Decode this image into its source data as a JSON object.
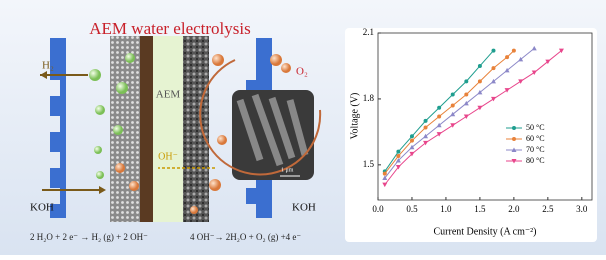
{
  "diagram": {
    "title": "AEM water electrolysis",
    "h2": "H₂",
    "o2": "O₂",
    "membrane": "AEM",
    "ion": "OH⁻",
    "koh_left": "KOH",
    "koh_right": "KOH",
    "scale_bar": "1 μm",
    "cathode_eq": "2 H₂O + 2 e⁻ → H₂ (g) + 2 OH⁻",
    "anode_eq": "4 OH⁻→ 2H₂O + O₂ (g) +4 e⁻"
  },
  "chart_data": {
    "type": "line",
    "x_label": "Current Density (A cm⁻²)",
    "y_label": "Voltage (V)",
    "xlim": [
      0,
      3.15
    ],
    "ylim": [
      1.34,
      2.1
    ],
    "xticks": [
      {
        "value": 0,
        "label": "0.0"
      },
      0.5,
      {
        "value": 1,
        "label": "1.0"
      },
      1.5,
      {
        "value": 2,
        "label": "2.0"
      },
      2.5,
      {
        "value": 3,
        "label": "3.0"
      }
    ],
    "yticks": [
      1.5,
      1.8,
      2.1
    ],
    "legend": "right",
    "series": [
      {
        "name": "50 °C",
        "color": "#1f9e8f",
        "marker": "circle",
        "x": [
          0.1,
          0.3,
          0.5,
          0.7,
          0.9,
          1.1,
          1.3,
          1.5,
          1.7
        ],
        "values": [
          1.47,
          1.56,
          1.63,
          1.7,
          1.76,
          1.82,
          1.88,
          1.95,
          2.02
        ]
      },
      {
        "name": "60 °C",
        "color": "#e8823a",
        "marker": "circle",
        "x": [
          0.1,
          0.3,
          0.5,
          0.7,
          0.9,
          1.1,
          1.3,
          1.5,
          1.7,
          1.9,
          2.0
        ],
        "values": [
          1.46,
          1.54,
          1.61,
          1.67,
          1.72,
          1.77,
          1.82,
          1.88,
          1.94,
          1.99,
          2.02
        ]
      },
      {
        "name": "70 °C",
        "color": "#8c88c8",
        "marker": "triangle",
        "x": [
          0.1,
          0.3,
          0.5,
          0.7,
          0.9,
          1.1,
          1.3,
          1.5,
          1.7,
          1.9,
          2.1,
          2.3
        ],
        "values": [
          1.44,
          1.52,
          1.58,
          1.63,
          1.68,
          1.73,
          1.78,
          1.83,
          1.88,
          1.93,
          1.98,
          2.03
        ]
      },
      {
        "name": "80 °C",
        "color": "#e8468c",
        "marker": "triangle-down",
        "x": [
          0.1,
          0.3,
          0.5,
          0.7,
          0.9,
          1.1,
          1.3,
          1.5,
          1.7,
          1.9,
          2.1,
          2.3,
          2.5,
          2.7
        ],
        "values": [
          1.41,
          1.49,
          1.55,
          1.6,
          1.64,
          1.68,
          1.72,
          1.76,
          1.8,
          1.84,
          1.88,
          1.92,
          1.97,
          2.02
        ]
      }
    ]
  }
}
